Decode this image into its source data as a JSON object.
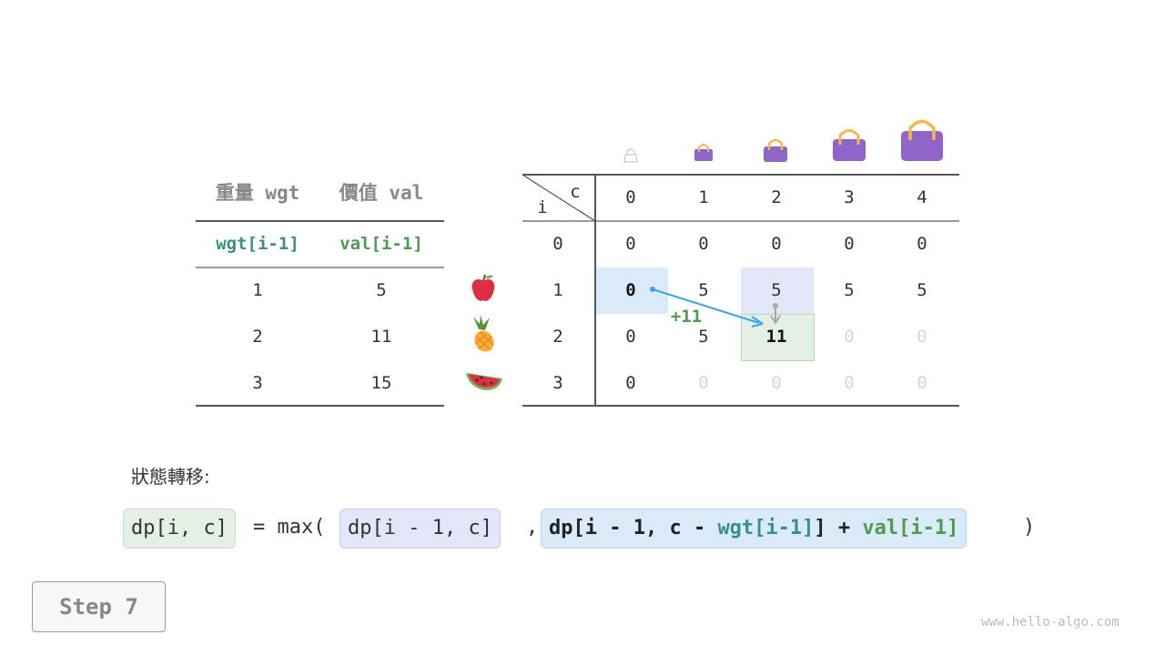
{
  "items_table": {
    "headers": [
      "重量 wgt",
      "價值 val"
    ],
    "subheaders": [
      "wgt[i-1]",
      "val[i-1]"
    ],
    "rows": [
      {
        "wgt": "1",
        "val": "5",
        "icon": "apple-icon"
      },
      {
        "wgt": "2",
        "val": "11",
        "icon": "pineapple-icon"
      },
      {
        "wgt": "3",
        "val": "15",
        "icon": "watermelon-icon"
      }
    ]
  },
  "dp_table": {
    "corner_c": "c",
    "corner_i": "i",
    "capacities": [
      "0",
      "1",
      "2",
      "3",
      "4"
    ],
    "row_labels": [
      "0",
      "1",
      "2",
      "3"
    ],
    "cells": [
      [
        {
          "v": "0",
          "s": "done"
        },
        {
          "v": "0",
          "s": "done"
        },
        {
          "v": "0",
          "s": "done"
        },
        {
          "v": "0",
          "s": "done"
        },
        {
          "v": "0",
          "s": "done"
        }
      ],
      [
        {
          "v": "0",
          "s": "source-bold"
        },
        {
          "v": "5",
          "s": "done"
        },
        {
          "v": "5",
          "s": "done"
        },
        {
          "v": "5",
          "s": "done"
        },
        {
          "v": "5",
          "s": "done"
        }
      ],
      [
        {
          "v": "0",
          "s": "done"
        },
        {
          "v": "5",
          "s": "done"
        },
        {
          "v": "11",
          "s": "current"
        },
        {
          "v": "0",
          "s": "pending"
        },
        {
          "v": "0",
          "s": "pending"
        }
      ],
      [
        {
          "v": "0",
          "s": "done"
        },
        {
          "v": "0",
          "s": "pending"
        },
        {
          "v": "0",
          "s": "pending"
        },
        {
          "v": "0",
          "s": "pending"
        },
        {
          "v": "0",
          "s": "pending"
        }
      ]
    ],
    "arrow_label": "+11",
    "colors": {
      "source": "#dbeaf9",
      "upper": "#e2e6f8",
      "current": "#e3f0e3",
      "arrow": "#3ba3e6",
      "bag": "#9065c9",
      "handle": "#f5b94a"
    }
  },
  "transition": {
    "label": "狀態轉移:",
    "lhs": "dp[i, c]",
    "eq": "= max(",
    "opt1": "dp[i - 1, c]",
    "comma": ",",
    "opt2_a": "dp[i - 1, c - ",
    "opt2_wgt": "wgt[i-1]",
    "opt2_b": "] + ",
    "opt2_val": "val[i-1]",
    "close": ")"
  },
  "step_button": "Step 7",
  "watermark": "www.hello-algo.com"
}
